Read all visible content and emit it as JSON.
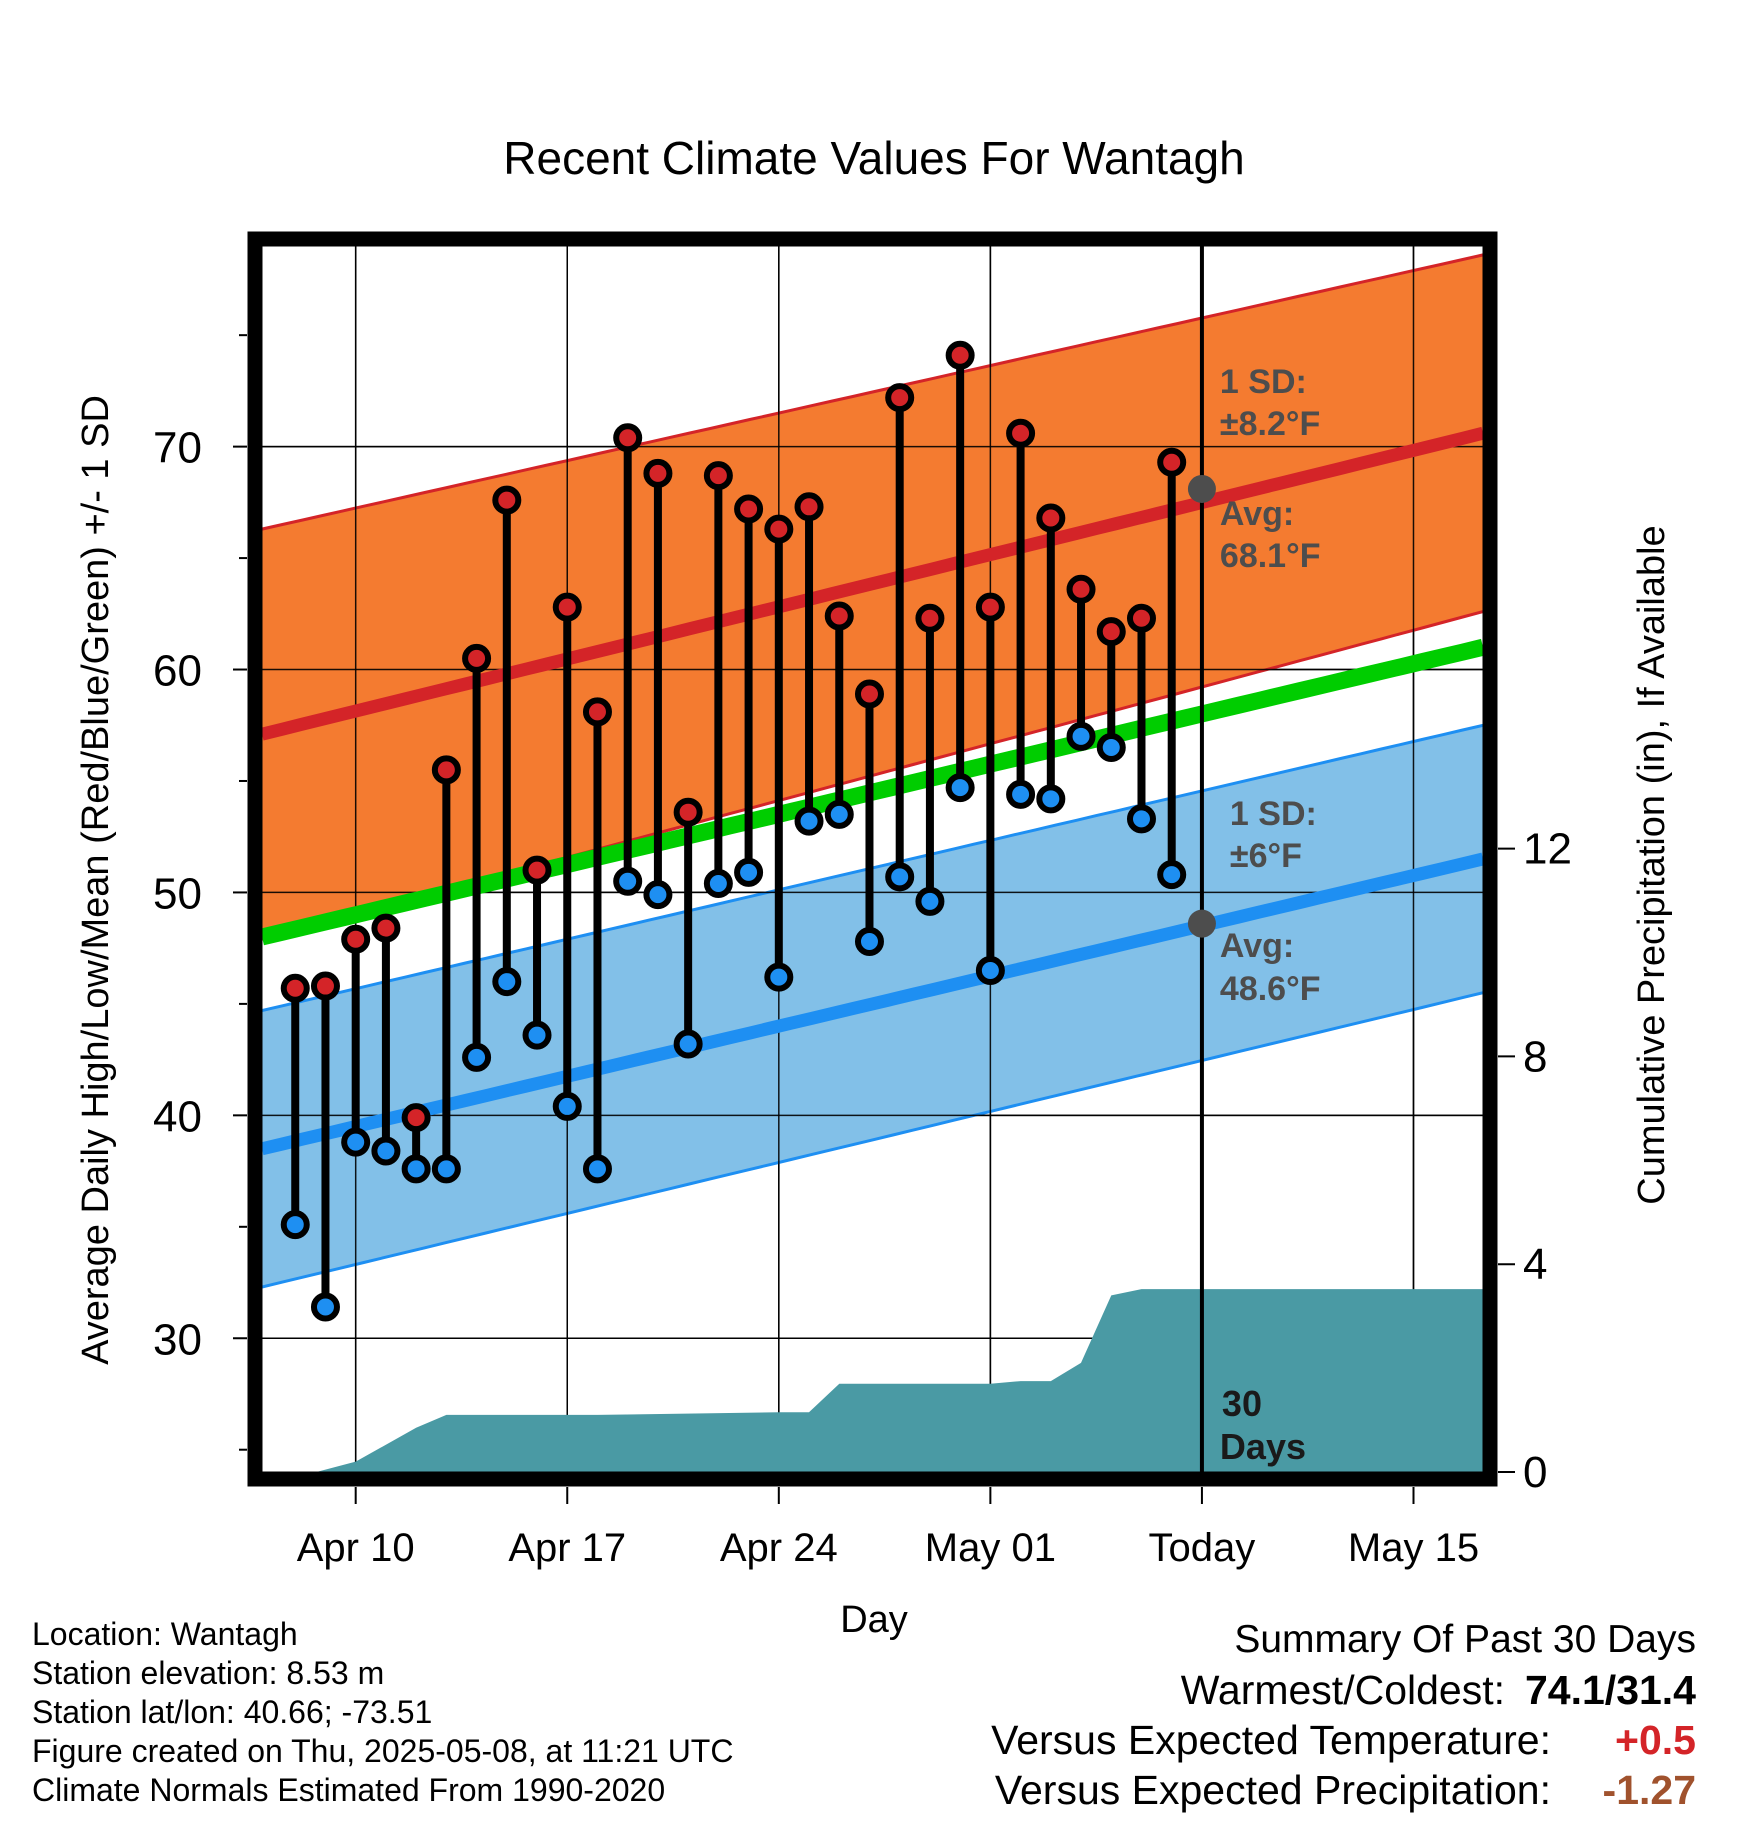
{
  "chart_data": {
    "type": "line",
    "title": "Recent Climate Values For Wantagh",
    "xlabel": "Day",
    "ylabel": "Average Daily High/Low/Mean (Red/Blue/Green) +/- 1 SD",
    "y2label": "Cumulative Precipitation (in), If Available",
    "ylim": [
      24,
      79
    ],
    "y_ticks": [
      30,
      40,
      50,
      60,
      70
    ],
    "y2lim": [
      0,
      23.6
    ],
    "y2_ticks": [
      0,
      4,
      8,
      12
    ],
    "x_ticks": [
      {
        "day": 2,
        "label": "Apr 10"
      },
      {
        "day": 9,
        "label": "Apr 17"
      },
      {
        "day": 16,
        "label": "Apr 24"
      },
      {
        "day": 23,
        "label": "May 01"
      },
      {
        "day": 30,
        "label": "Today"
      },
      {
        "day": 37,
        "label": "May 15"
      }
    ],
    "xlim": [
      -1.1,
      39.3
    ],
    "today_day": 30,
    "normals": {
      "start_day": -1.1,
      "end_day": 39.3,
      "high_avg": [
        57.1,
        70.6
      ],
      "high_sd": [
        9.2,
        8.0
      ],
      "low_avg": [
        38.5,
        51.5
      ],
      "low_sd": [
        6.2,
        6.0
      ],
      "mean_avg": [
        48.0,
        61.0
      ]
    },
    "series": [
      {
        "name": "Daily High",
        "days": [
          0,
          1,
          2,
          3,
          4,
          5,
          6,
          7,
          8,
          9,
          10,
          11,
          12,
          13,
          14,
          15,
          16,
          17,
          18,
          19,
          20,
          21,
          22,
          23,
          24,
          25,
          26,
          27,
          28,
          29
        ],
        "values": [
          45.7,
          45.8,
          47.9,
          48.4,
          39.9,
          55.5,
          60.5,
          67.6,
          51.0,
          62.8,
          58.1,
          70.4,
          68.8,
          53.6,
          68.7,
          67.2,
          66.3,
          67.3,
          62.4,
          58.9,
          72.2,
          62.3,
          74.1,
          62.8,
          70.6,
          66.8,
          63.6,
          61.7,
          62.3,
          69.3
        ]
      },
      {
        "name": "Daily Low",
        "days": [
          0,
          1,
          2,
          3,
          4,
          5,
          6,
          7,
          8,
          9,
          10,
          11,
          12,
          13,
          14,
          15,
          16,
          17,
          18,
          19,
          20,
          21,
          22,
          23,
          24,
          25,
          26,
          27,
          28,
          29
        ],
        "values": [
          35.1,
          31.4,
          38.8,
          38.4,
          37.6,
          37.6,
          42.6,
          46.0,
          43.6,
          40.4,
          37.6,
          50.5,
          49.9,
          43.2,
          50.4,
          50.9,
          46.2,
          53.2,
          53.5,
          47.8,
          50.7,
          49.6,
          54.7,
          46.5,
          54.4,
          54.2,
          57.0,
          56.5,
          53.3,
          50.8
        ]
      },
      {
        "name": "Cumulative Precipitation",
        "points": [
          [
            0.7,
            0.0
          ],
          [
            2.0,
            0.2
          ],
          [
            4.0,
            0.85
          ],
          [
            5.0,
            1.1
          ],
          [
            10.0,
            1.1
          ],
          [
            16.0,
            1.15
          ],
          [
            17.0,
            1.15
          ],
          [
            18.0,
            1.7
          ],
          [
            23.0,
            1.7
          ],
          [
            24.0,
            1.75
          ],
          [
            25.0,
            1.75
          ],
          [
            26.0,
            2.1
          ],
          [
            27.0,
            3.4
          ],
          [
            28.0,
            3.52
          ],
          [
            39.3,
            3.52
          ]
        ]
      }
    ],
    "annotations": {
      "high_sd_label": "1 SD:",
      "high_sd_value": "±8.2°F",
      "high_avg_label": "Avg:",
      "high_avg_value": "68.1°F",
      "high_avg_today": 68.1,
      "low_sd_label": "1 SD:",
      "low_sd_value": "±6°F",
      "low_avg_label": "Avg:",
      "low_avg_value": "48.6°F",
      "low_avg_today": 48.6,
      "days_label_1": "30",
      "days_label_2": "Days"
    },
    "colors": {
      "high_band": "#f47b30",
      "high_line": "#d42428",
      "low_band": "#82c0e8",
      "low_line": "#1e8ff2",
      "mean_line": "#00cd00",
      "precip": "#4a9aa4",
      "high_marker": "#d42428",
      "low_marker": "#1e8ff2",
      "annotation_text": "#4d4d4d",
      "avg_dot": "#4d4d4d"
    }
  },
  "footer": {
    "location": "Location: Wantagh",
    "elevation": "Station elevation: 8.53 m",
    "latlon": "Station lat/lon: 40.66; -73.51",
    "created": "Figure created on Thu, 2025-05-08, at 11:21 UTC",
    "normals": "Climate Normals Estimated From 1990-2020"
  },
  "summary": {
    "title": "Summary Of Past 30 Days",
    "warmest_coldest_label": "Warmest/Coldest:",
    "warmest_coldest_value": "74.1/31.4",
    "temp_label": "Versus Expected Temperature:",
    "temp_value": "+0.5",
    "temp_color": "#d42428",
    "precip_label": "Versus Expected Precipitation:",
    "precip_value": "-1.27",
    "precip_color": "#a0522d"
  }
}
